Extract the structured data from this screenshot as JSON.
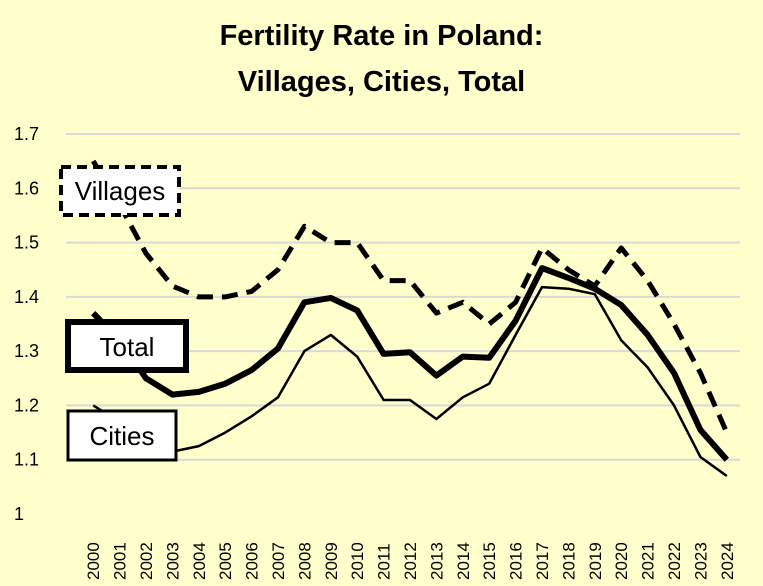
{
  "chart_data": {
    "type": "line",
    "title": "Fertility Rate in Poland:",
    "subtitle": "Villages, Cities, Total",
    "xlabel": "",
    "ylabel": "",
    "ylim": [
      1,
      1.7
    ],
    "yticks": [
      1,
      1.1,
      1.2,
      1.3,
      1.4,
      1.5,
      1.6,
      1.7
    ],
    "ytick_labels": [
      "1",
      "1.1",
      "1.2",
      "1.3",
      "1.4",
      "1.5",
      "1.6",
      "1.7"
    ],
    "grid": true,
    "categories": [
      "2000",
      "2001",
      "2002",
      "2003",
      "2004",
      "2005",
      "2006",
      "2007",
      "2008",
      "2009",
      "2010",
      "2011",
      "2012",
      "2013",
      "2014",
      "2015",
      "2016",
      "2017",
      "2018",
      "2019",
      "2020",
      "2021",
      "2022",
      "2023",
      "2024"
    ],
    "series": [
      {
        "name": "Villages",
        "style": "dashed",
        "color": "#000000",
        "values": [
          1.65,
          1.57,
          1.48,
          1.42,
          1.4,
          1.4,
          1.41,
          1.45,
          1.53,
          1.5,
          1.5,
          1.43,
          1.43,
          1.37,
          1.39,
          1.35,
          1.39,
          1.49,
          1.45,
          1.42,
          1.49,
          1.43,
          1.35,
          1.26,
          1.15
        ]
      },
      {
        "name": "Total",
        "style": "bold",
        "color": "#000000",
        "values": [
          1.37,
          1.32,
          1.25,
          1.22,
          1.225,
          1.24,
          1.265,
          1.305,
          1.39,
          1.398,
          1.375,
          1.295,
          1.298,
          1.255,
          1.29,
          1.288,
          1.356,
          1.453,
          1.435,
          1.415,
          1.385,
          1.33,
          1.26,
          1.155,
          1.1
        ]
      },
      {
        "name": "Cities",
        "style": "thin",
        "color": "#000000",
        "values": [
          1.2,
          1.17,
          1.135,
          1.115,
          1.125,
          1.15,
          1.18,
          1.215,
          1.3,
          1.33,
          1.29,
          1.21,
          1.21,
          1.175,
          1.215,
          1.24,
          1.33,
          1.418,
          1.415,
          1.405,
          1.32,
          1.27,
          1.2,
          1.105,
          1.07
        ]
      }
    ]
  },
  "colors": {
    "background": "#ffffcc",
    "grid": "#d9d9d9",
    "line": "#000000"
  }
}
